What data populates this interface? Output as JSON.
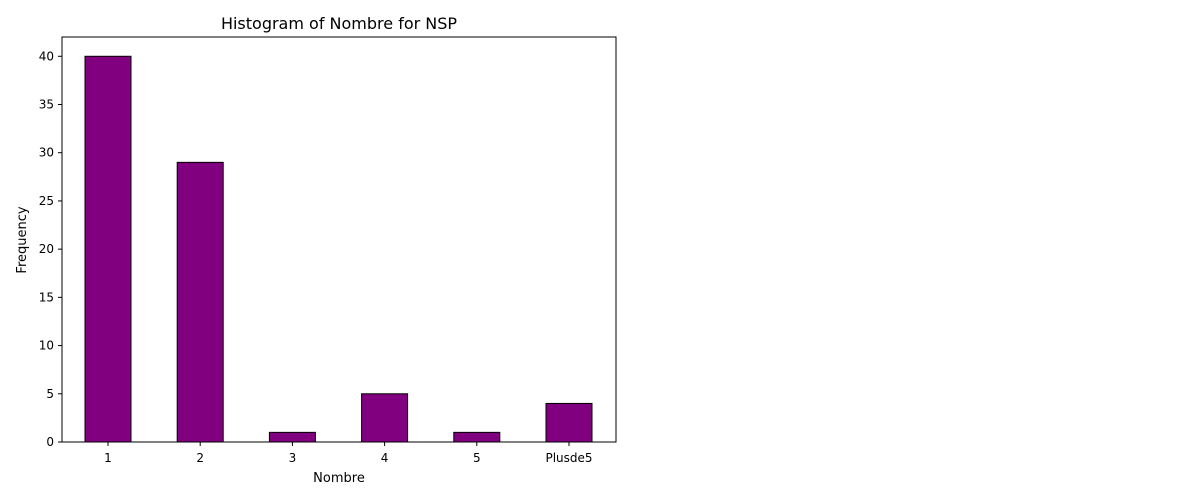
{
  "chart_data": {
    "type": "bar",
    "title": "Histogram of Nombre for NSP",
    "xlabel": "Nombre",
    "ylabel": "Frequency",
    "categories": [
      "1",
      "2",
      "3",
      "4",
      "5",
      "Plusde5"
    ],
    "values": [
      40,
      29,
      1,
      5,
      1,
      4
    ],
    "ylim": [
      0,
      42
    ],
    "yticks": [
      0,
      5,
      10,
      15,
      20,
      25,
      30,
      35,
      40
    ],
    "grid": false,
    "colors": {
      "bar_fill": "#800080",
      "bar_edge": "#000000",
      "axes": "#000000"
    }
  }
}
